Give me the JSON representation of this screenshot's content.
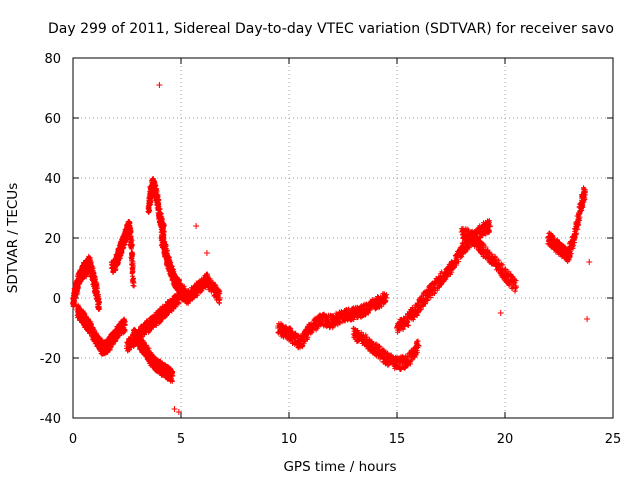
{
  "chart_data": {
    "type": "scatter",
    "title": "Day 299 of 2011, Sidereal Day-to-day VTEC variation (SDTVAR) for receiver savo",
    "xlabel": "GPS time / hours",
    "ylabel": "SDTVAR / TECUs",
    "xlim": [
      0,
      25
    ],
    "ylim": [
      -40,
      80
    ],
    "xticks": [
      0,
      5,
      10,
      15,
      20,
      25
    ],
    "yticks": [
      -40,
      -20,
      0,
      20,
      40,
      60,
      80
    ],
    "xtick_labels": [
      "0",
      "5",
      "10",
      "15",
      "20",
      "25"
    ],
    "ytick_labels": [
      "-40",
      "-20",
      "0",
      "20",
      "40",
      "60",
      "80"
    ],
    "grid": true,
    "marker": "+",
    "series": [
      {
        "name": "SDTVAR",
        "color": "#ff0000",
        "segments": [
          {
            "note": "early dense arc",
            "x": [
              0.0,
              0.1,
              0.2,
              0.3,
              0.4,
              0.5,
              0.6,
              0.7,
              0.8,
              0.9,
              1.0,
              1.1,
              1.2
            ],
            "y": [
              -2,
              2,
              4,
              7,
              8,
              10,
              9,
              12,
              11,
              8,
              5,
              2,
              -3
            ]
          },
          {
            "note": "early lower branch",
            "x": [
              0.2,
              0.4,
              0.6,
              0.8,
              1.0,
              1.2,
              1.4,
              1.6,
              1.8,
              2.0,
              2.2,
              2.4
            ],
            "y": [
              -4,
              -6,
              -8,
              -10,
              -13,
              -15,
              -17,
              -16,
              -14,
              -12,
              -10,
              -9
            ]
          },
          {
            "note": "arc rising to 2.6h",
            "x": [
              1.8,
              2.0,
              2.1,
              2.2,
              2.3,
              2.4,
              2.5,
              2.6,
              2.7,
              2.8
            ],
            "y": [
              10,
              12,
              14,
              16,
              18,
              20,
              22,
              24,
              18,
              5
            ]
          },
          {
            "note": "deep trough near 4h",
            "x": [
              2.8,
              3.0,
              3.2,
              3.4,
              3.6,
              3.8,
              4.0,
              4.2,
              4.4,
              4.6
            ],
            "y": [
              -12,
              -14,
              -16,
              -18,
              -20,
              -22,
              -23,
              -24,
              -25,
              -26
            ]
          },
          {
            "note": "spike near 4h",
            "x": [
              3.5,
              3.6,
              3.7,
              3.8,
              3.9,
              4.0,
              4.1,
              4.2
            ],
            "y": [
              30,
              35,
              38,
              36,
              33,
              28,
              25,
              22
            ]
          },
          {
            "note": "descending band 4.1-5h",
            "x": [
              4.1,
              4.2,
              4.3,
              4.4,
              4.5,
              4.6,
              4.7,
              4.8,
              4.9,
              5.0,
              5.1
            ],
            "y": [
              20,
              18,
              15,
              12,
              10,
              8,
              6,
              5,
              4,
              2,
              1
            ]
          },
          {
            "note": "band 5-7h",
            "x": [
              5.0,
              5.3,
              5.6,
              5.9,
              6.2,
              6.5,
              6.8
            ],
            "y": [
              3,
              0,
              2,
              4,
              6,
              3,
              0
            ]
          },
          {
            "note": "rising band 2.5-5h",
            "x": [
              2.5,
              2.8,
              3.1,
              3.4,
              3.7,
              4.0,
              4.3,
              4.6,
              4.9
            ],
            "y": [
              -16,
              -14,
              -12,
              -10,
              -8,
              -6,
              -4,
              -2,
              0
            ]
          },
          {
            "note": "midday cluster 9.5-14.5h",
            "x": [
              9.5,
              10.0,
              10.5,
              11.0,
              11.5,
              12.0,
              12.5,
              13.0,
              13.5,
              14.0,
              14.5
            ],
            "y": [
              -10,
              -12,
              -15,
              -10,
              -7,
              -8,
              -6,
              -5,
              -4,
              -2,
              0
            ]
          },
          {
            "note": "deep arc 13-16h",
            "x": [
              13.0,
              13.5,
              14.0,
              14.5,
              15.0,
              15.5,
              16.0
            ],
            "y": [
              -12,
              -14,
              -17,
              -20,
              -22,
              -21,
              -16
            ]
          },
          {
            "note": "afternoon rise 15-19h",
            "x": [
              15.0,
              15.5,
              16.0,
              16.5,
              17.0,
              17.5,
              18.0,
              18.5,
              19.0,
              19.3
            ],
            "y": [
              -10,
              -7,
              -3,
              2,
              6,
              10,
              16,
              20,
              23,
              24
            ]
          },
          {
            "note": "decline 18-20.5h",
            "x": [
              18.0,
              18.5,
              19.0,
              19.5,
              20.0,
              20.5
            ],
            "y": [
              22,
              20,
              16,
              12,
              8,
              4
            ]
          },
          {
            "note": "late cluster 22-24h",
            "x": [
              22.0,
              22.3,
              22.6,
              22.9,
              23.2,
              23.5,
              23.7
            ],
            "y": [
              20,
              18,
              16,
              14,
              20,
              30,
              36
            ]
          }
        ],
        "outliers": {
          "x": [
            4.0,
            4.7,
            4.9,
            5.7,
            6.2,
            19.8,
            23.8,
            23.9
          ],
          "y": [
            71,
            -37,
            -38,
            24,
            15,
            -5,
            -7,
            12
          ]
        }
      }
    ]
  }
}
